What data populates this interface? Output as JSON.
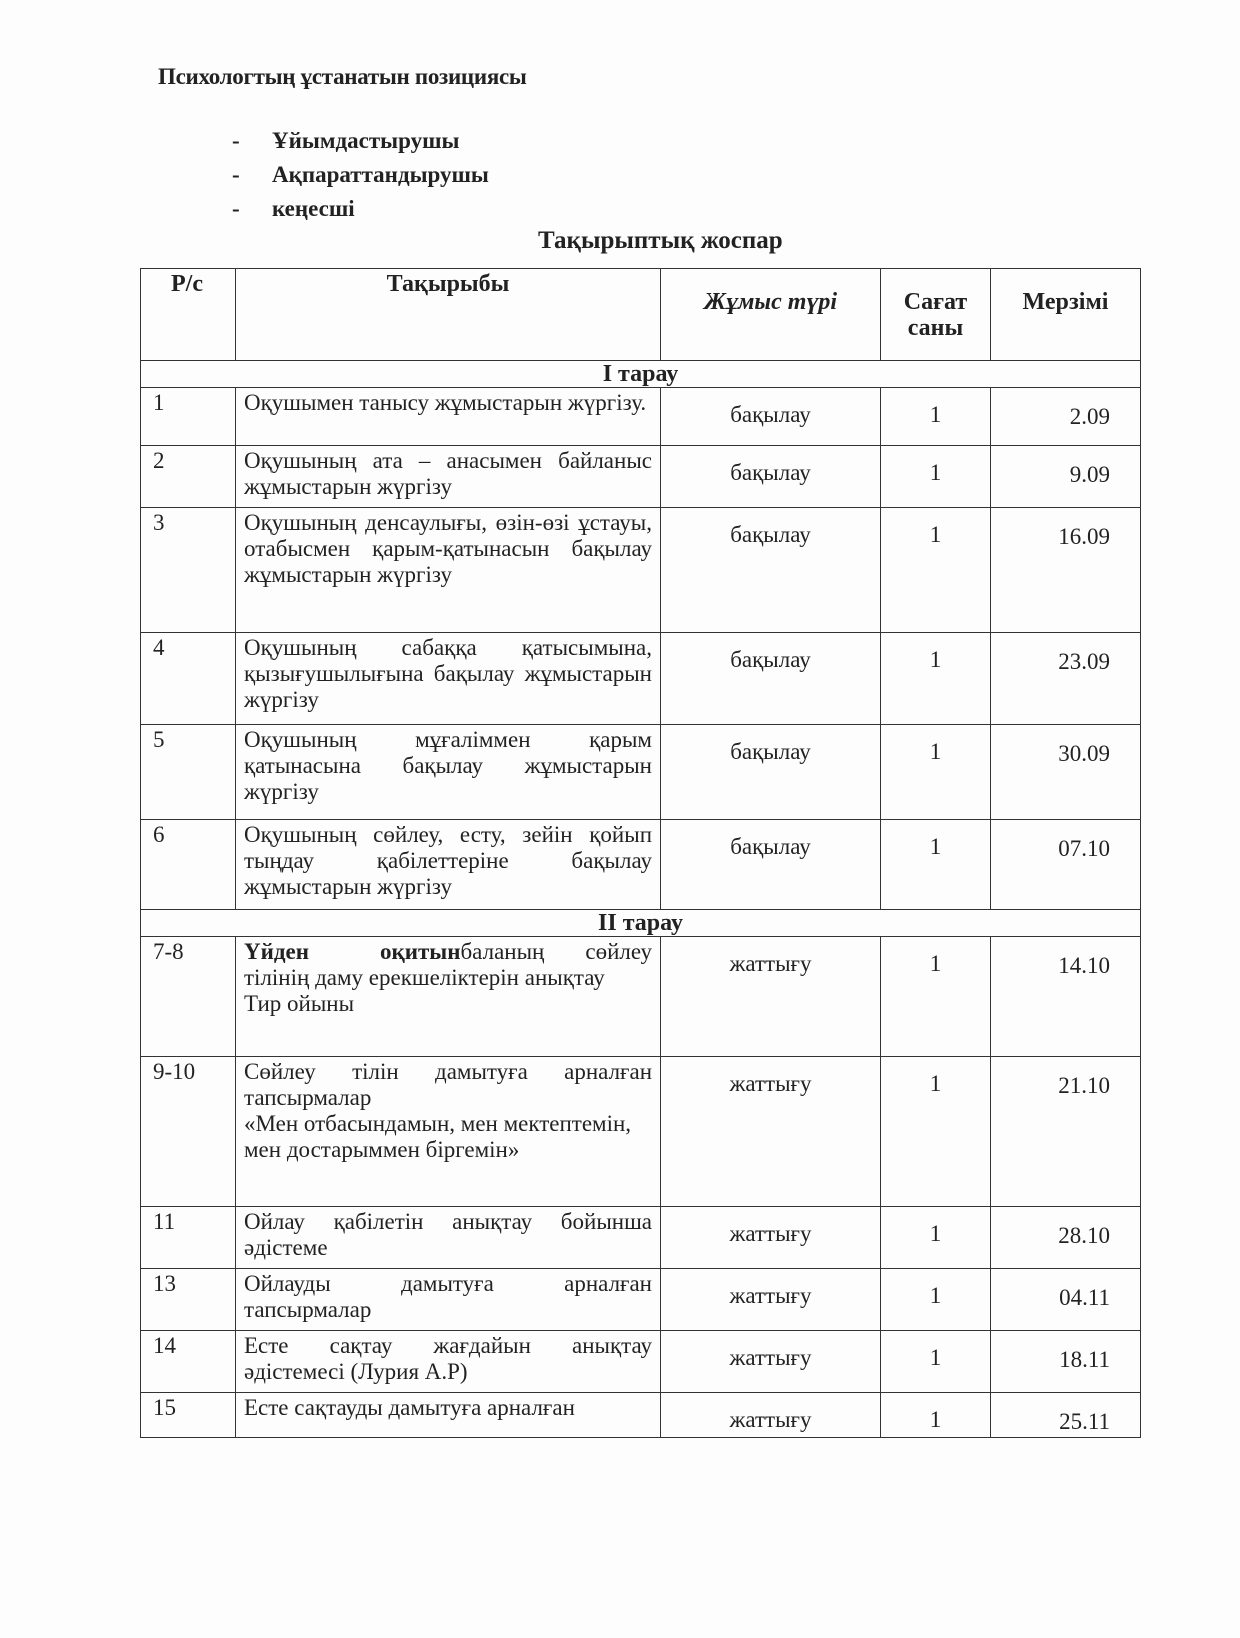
{
  "title": "Психологтың ұстанатын позициясы",
  "roles": [
    "Ұйымдастырушы",
    "Ақпараттандырушы",
    "кеңесші"
  ],
  "plan_title": "Тақырыптық жоспар",
  "table": {
    "headers": [
      "Р/с",
      "Тақырыбы",
      "Жұмыс түрі",
      "Сағат саны",
      "Мерзімі"
    ],
    "sections": [
      {
        "name": "I тарау",
        "rows": [
          {
            "num": "1",
            "topic": "Оқушымен танысу жұмыстарын жүргізу.",
            "type": "бақылау",
            "hours": "1",
            "date": "2.09"
          },
          {
            "num": "2",
            "topic": "Оқушының ата – анасымен байланыс жұмыстарын жүргізу",
            "type": "бақылау",
            "hours": "1",
            "date": "9.09"
          },
          {
            "num": "3",
            "topic": "Оқушының денсаулығы, өзін-өзі ұстауы, отабысмен қарым-қатынасын бақылау жұмыстарын жүргізу",
            "type": "бақылау",
            "hours": "1",
            "date": "16.09"
          },
          {
            "num": "4",
            "topic": "Оқушының сабаққа қатысымына, қызығушылығына бақылау жұмыстарын жүргізу",
            "type": "бақылау",
            "hours": "1",
            "date": "23.09"
          },
          {
            "num": "5",
            "topic": "Оқушының мұғаліммен қарым қатынасына бақылау жұмыстарын жүргізу",
            "type": "бақылау",
            "hours": "1",
            "date": "30.09"
          },
          {
            "num": "6",
            "topic": "Оқушының сөйлеу, есту, зейін қойып тыңдау қабілеттеріне бақылау жұмыстарын жүргізу",
            "type": "бақылау",
            "hours": "1",
            "date": "07.10"
          }
        ]
      },
      {
        "name": "II тарау",
        "rows": [
          {
            "num": "7-8",
            "topic_bold": "Үйден оқитын",
            "topic": "баланың сөйлеу тілінің даму ерекшеліктерін анықтау",
            "topic_extra": "Тир ойыны",
            "type": "жаттығу",
            "hours": "1",
            "date": "14.10"
          },
          {
            "num": "9-10",
            "topic": "Сөйлеу тілін дамытуға арналған тапсырмалар",
            "topic_extra": "«Мен отбасындамын, мен мектептемін, мен достарыммен біргемін»",
            "type": "жаттығу",
            "hours": "1",
            "date": "21.10"
          },
          {
            "num": "11",
            "topic": "Ойлау қабілетін анықтау бойынша әдістеме",
            "type": "жаттығу",
            "hours": "1",
            "date": "28.10"
          },
          {
            "num": "13",
            "topic": "Ойлауды дамытуға арналған тапсырмалар",
            "type": "жаттығу",
            "hours": "1",
            "date": "04.11"
          },
          {
            "num": "14",
            "topic": "Есте сақтау жағдайын анықтау әдістемесі (Лурия А.Р)",
            "type": "жаттығу",
            "hours": "1",
            "date": "18.11"
          },
          {
            "num": "15",
            "topic": "Есте сақтауды дамытуға арналған",
            "type": "жаттығу",
            "hours": "1",
            "date": "25.11"
          }
        ]
      }
    ]
  }
}
